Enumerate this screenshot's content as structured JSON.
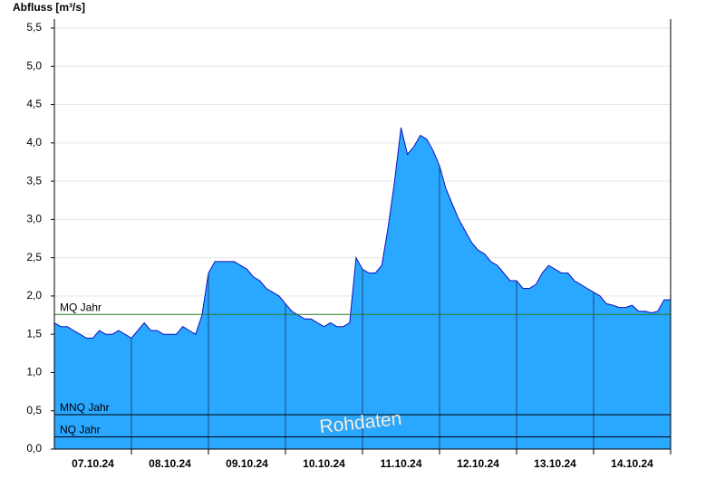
{
  "chart_data": {
    "type": "area",
    "y_label": "Abfluss [m³/s]",
    "watermark": "Rohdaten",
    "categories": [
      "07.10.24",
      "08.10.24",
      "09.10.24",
      "10.10.24",
      "11.10.24",
      "12.10.24",
      "13.10.24",
      "14.10.24"
    ],
    "values": [
      [
        1.65,
        1.6,
        1.6,
        1.55,
        1.5,
        1.45,
        1.45,
        1.55,
        1.5,
        1.5,
        1.55,
        1.5
      ],
      [
        1.45,
        1.55,
        1.65,
        1.55,
        1.55,
        1.5,
        1.5,
        1.5,
        1.6,
        1.55,
        1.5,
        1.75
      ],
      [
        2.3,
        2.45,
        2.45,
        2.45,
        2.45,
        2.4,
        2.35,
        2.25,
        2.2,
        2.1,
        2.05,
        2.0
      ],
      [
        1.9,
        1.8,
        1.75,
        1.7,
        1.7,
        1.65,
        1.6,
        1.65,
        1.6,
        1.6,
        1.65,
        2.5
      ],
      [
        2.35,
        2.3,
        2.3,
        2.4,
        2.9,
        3.5,
        4.2,
        3.85,
        3.95,
        4.1,
        4.05,
        3.9
      ],
      [
        3.7,
        3.4,
        3.2,
        3.0,
        2.85,
        2.7,
        2.6,
        2.55,
        2.45,
        2.4,
        2.3,
        2.2
      ],
      [
        2.2,
        2.1,
        2.1,
        2.15,
        2.3,
        2.4,
        2.35,
        2.3,
        2.3,
        2.2,
        2.15,
        2.1
      ],
      [
        2.05,
        2.0,
        1.9,
        1.88,
        1.85,
        1.85,
        1.88,
        1.8,
        1.8,
        1.78,
        1.8,
        1.95
      ]
    ],
    "color": "#2aa7ff",
    "line_color": "#1010c0",
    "reference_lines": [
      {
        "label": "MQ Jahr",
        "value": 1.76,
        "color": "#2a7a2a"
      },
      {
        "label": "MNQ Jahr",
        "value": 0.45,
        "color": "#000000"
      },
      {
        "label": "NQ Jahr",
        "value": 0.16,
        "color": "#000000"
      }
    ],
    "ylim": [
      0,
      5.5
    ],
    "yticks": [
      {
        "value": 0,
        "label": "0,0"
      },
      {
        "value": 0.5,
        "label": "0,5"
      },
      {
        "value": 1,
        "label": "1,0"
      },
      {
        "value": 1.5,
        "label": "1,5"
      },
      {
        "value": 2,
        "label": "2,0"
      },
      {
        "value": 2.5,
        "label": "2,5"
      },
      {
        "value": 3,
        "label": "3,0"
      },
      {
        "value": 3.5,
        "label": "3,5"
      },
      {
        "value": 4,
        "label": "4,0"
      },
      {
        "value": 4.5,
        "label": "4,5"
      },
      {
        "value": 5,
        "label": "5,0"
      },
      {
        "value": 5.5,
        "label": "5,5"
      }
    ],
    "grid": true
  }
}
